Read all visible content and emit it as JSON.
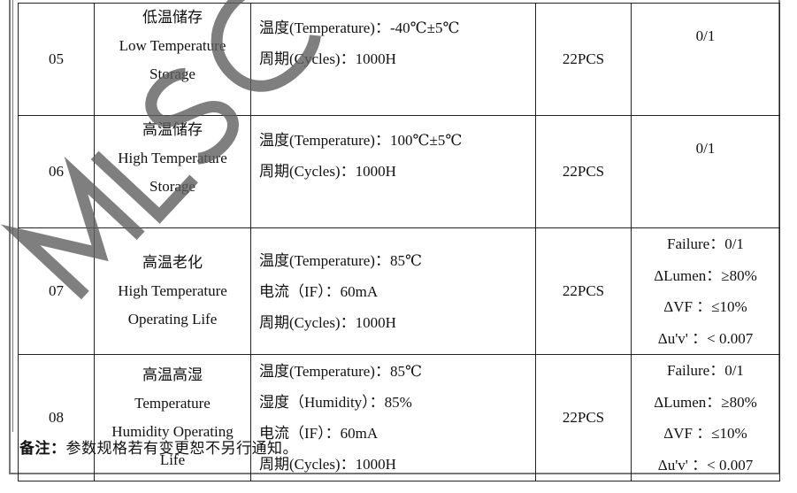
{
  "watermark": "MLS CO",
  "rows": [
    {
      "no": "05",
      "item": [
        "低温储存",
        "Low Temperature",
        "Storage"
      ],
      "conditions": [
        "温度(Temperature)：-40℃±5℃",
        "周期(Cycles)：1000H"
      ],
      "qty": "22PCS",
      "result": [
        "0/1"
      ]
    },
    {
      "no": "06",
      "item": [
        "高温储存",
        "High Temperature",
        "Storage"
      ],
      "conditions": [
        "温度(Temperature)：100℃±5℃",
        "周期(Cycles)：1000H"
      ],
      "qty": "22PCS",
      "result": [
        "0/1"
      ]
    },
    {
      "no": "07",
      "item": [
        "高温老化",
        "High Temperature",
        "Operating Life"
      ],
      "conditions": [
        "温度(Temperature)：85℃",
        "电流（IF）：60mA",
        "周期(Cycles)：1000H"
      ],
      "qty": "22PCS",
      "result": [
        "Failure：0/1",
        "ΔLumen：≥80%",
        "ΔVF ：≤10%",
        "Δu'v' ：< 0.007"
      ]
    },
    {
      "no": "08",
      "item": [
        "高温高湿",
        "Temperature",
        "Humidity Operating",
        "Life"
      ],
      "conditions": [
        "温度(Temperature)：85℃",
        "湿度（Humidity）：85%",
        "电流（IF）：60mA",
        "周期(Cycles)：1000H"
      ],
      "qty": "22PCS",
      "result": [
        "Failure：0/1",
        "ΔLumen：≥80%",
        "ΔVF ：≤10%",
        "Δu'v' ：< 0.007"
      ]
    }
  ],
  "note": {
    "label": "备注：",
    "text": "参数规格若有变更恕不另行通知。"
  }
}
